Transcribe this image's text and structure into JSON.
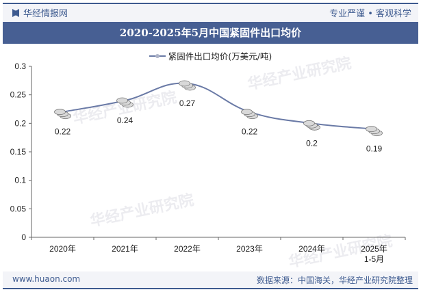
{
  "header": {
    "brand": "华经情报网",
    "slogan": "专业严谨 • 客观科学"
  },
  "footer": {
    "website": "www.huaon.com",
    "source": "数据来源：中国海关，华经产业研究院整理"
  },
  "watermark": "华经产业研究院 www.huaon.com",
  "chart_data": {
    "type": "line",
    "title": "2020-2025年5月中国紧固件出口均价",
    "categories": [
      "2020年",
      "2021年",
      "2022年",
      "2023年",
      "2024年",
      "2025年\n1-5月"
    ],
    "series": [
      {
        "name": "紧固件出口均价(万美元/吨)",
        "values": [
          0.22,
          0.24,
          0.27,
          0.22,
          0.2,
          0.19
        ],
        "color": "#6a7aa6"
      }
    ],
    "ylim": [
      0,
      0.3
    ],
    "yticks": [
      "0",
      "0.05",
      "0.1",
      "0.15",
      "0.2",
      "0.25",
      "0.3"
    ],
    "legend": "top",
    "grid": false,
    "smooth": true,
    "data_labels": [
      "0.22",
      "0.24",
      "0.27",
      "0.22",
      "0.2",
      "0.19"
    ]
  }
}
